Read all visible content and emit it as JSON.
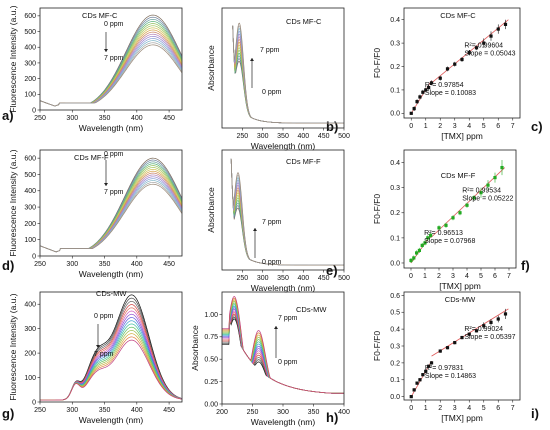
{
  "panel_letters": {
    "a": "a)",
    "b": "b)",
    "c": "c)",
    "d": "d)",
    "e": "e)",
    "f": "f)",
    "g": "g)",
    "h": "h)",
    "i": "i)"
  },
  "chart_data": [
    {
      "id": "fl_mfc",
      "type": "line",
      "title": "CDs MF-C",
      "xlabel": "Wavelength (nm)",
      "ylabel": "Fluorescence Intensity (a.u.)",
      "xlim": [
        250,
        470
      ],
      "ylim": [
        0,
        650
      ],
      "xticks": [
        250,
        300,
        350,
        400,
        450
      ],
      "yticks": [
        0,
        100,
        200,
        300,
        400,
        500,
        600
      ],
      "annotations": [
        "0 ppm",
        "7 ppm"
      ],
      "model": "fluor",
      "params": {
        "peak": 425,
        "width": 60,
        "amp_start": 605,
        "amp_end": 415,
        "n": 15,
        "ramp_min": 250,
        "ramp_rise": 20,
        "ramp_floor": 45,
        "dip_at": 273,
        "dip_min": 25
      }
    },
    {
      "id": "abs_mfc",
      "type": "line",
      "title": "CDs MF-C",
      "xlabel": "Wavelength (nm)",
      "ylabel": "Absorbance",
      "xlim": [
        200,
        500
      ],
      "ylim": [
        0,
        1.0
      ],
      "xticks": [
        250,
        300,
        350,
        400,
        450,
        500
      ],
      "yticks": [],
      "annotations": [
        "7 ppm",
        "0 ppm"
      ],
      "model": "absorb",
      "params": {
        "start": 225,
        "top": 0.98,
        "shoulder_at": 243,
        "shoulder_min": 0.5,
        "shoulder_max": 0.9,
        "decay": 28,
        "tail": 0.04,
        "n": 15
      }
    },
    {
      "id": "sv_mfc",
      "type": "scatter",
      "title": "CDs MF-C",
      "xlabel": "[TMX] ppm",
      "ylabel": "F0-F/F0",
      "xlim": [
        -0.5,
        7.5
      ],
      "ylim": [
        -0.02,
        0.45
      ],
      "xticks": [
        0,
        1,
        2,
        3,
        4,
        5,
        6,
        7
      ],
      "yticks": [
        0.0,
        0.1,
        0.2,
        0.3,
        0.4
      ],
      "x": [
        0,
        0.2,
        0.4,
        0.6,
        0.8,
        1.0,
        1.2,
        1.4,
        2.0,
        2.5,
        3.0,
        3.5,
        4.0,
        4.5,
        5.0,
        5.5,
        6.0,
        6.5
      ],
      "y": [
        0.0,
        0.02,
        0.05,
        0.07,
        0.09,
        0.1,
        0.11,
        0.13,
        0.15,
        0.19,
        0.21,
        0.23,
        0.26,
        0.28,
        0.3,
        0.33,
        0.36,
        0.38
      ],
      "err": [
        0,
        0.01,
        0.01,
        0.01,
        0.01,
        0.01,
        0.01,
        0.01,
        0.01,
        0.01,
        0.01,
        0.01,
        0.01,
        0.01,
        0.02,
        0.02,
        0.02,
        0.02
      ],
      "marker": "square",
      "color": "#111111",
      "fits": [
        {
          "x": [
            0,
            1.4
          ],
          "y": [
            0.0,
            0.14
          ],
          "r2": "R²= 0.97854",
          "slope": "Slope = 0.10083"
        },
        {
          "x": [
            1.4,
            6.7
          ],
          "y": [
            0.13,
            0.4
          ],
          "r2": "R²= 0.99604",
          "slope": "Slope = 0.05043"
        }
      ]
    },
    {
      "id": "fl_mff",
      "type": "line",
      "title": "CDs MF-F",
      "xlabel": "Wavelength (nm)",
      "ylabel": "Fluorescence Intensity (a.u.)",
      "xlim": [
        250,
        470
      ],
      "ylim": [
        0,
        650
      ],
      "xticks": [
        250,
        300,
        350,
        400,
        450
      ],
      "yticks": [
        0,
        100,
        200,
        300,
        400,
        500,
        600
      ],
      "annotations": [
        "0 ppm",
        "7 ppm"
      ],
      "model": "fluor",
      "params": {
        "peak": 425,
        "width": 62,
        "amp_start": 600,
        "amp_end": 440,
        "n": 15,
        "ramp_min": 250,
        "ramp_rise": 20,
        "ramp_floor": 45,
        "dip_at": 275,
        "dip_min": 25
      }
    },
    {
      "id": "abs_mff",
      "type": "line",
      "title": "CDs MF-F",
      "xlabel": "Wavelength (nm)",
      "ylabel": "Absorbance",
      "xlim": [
        200,
        500
      ],
      "ylim": [
        0,
        1.0
      ],
      "xticks": [
        250,
        300,
        350,
        400,
        450,
        500
      ],
      "yticks": [],
      "annotations": [
        "7 ppm",
        "0 ppm"
      ],
      "model": "absorb",
      "params": {
        "start": 222,
        "top": 0.98,
        "shoulder_at": 240,
        "shoulder_min": 0.45,
        "shoulder_max": 0.82,
        "decay": 28,
        "tail": 0.04,
        "n": 15
      }
    },
    {
      "id": "sv_mff",
      "type": "scatter",
      "title": "CDs MF-F",
      "xlabel": "[TMX] ppm",
      "ylabel": "F0-F/F0",
      "xlim": [
        -0.5,
        7.5
      ],
      "ylim": [
        -0.02,
        0.45
      ],
      "xticks": [
        0,
        1,
        2,
        3,
        4,
        5,
        6,
        7
      ],
      "yticks": [
        0.0,
        0.1,
        0.2,
        0.3,
        0.4
      ],
      "x": [
        0,
        0.2,
        0.4,
        0.6,
        0.8,
        1.0,
        1.2,
        1.4,
        2.0,
        2.5,
        3.0,
        3.5,
        4.0,
        4.5,
        5.0,
        5.5,
        6.0,
        6.5
      ],
      "y": [
        0.01,
        0.02,
        0.04,
        0.05,
        0.07,
        0.08,
        0.1,
        0.11,
        0.14,
        0.15,
        0.18,
        0.2,
        0.23,
        0.26,
        0.28,
        0.31,
        0.34,
        0.38
      ],
      "err": [
        0.01,
        0.01,
        0.01,
        0.01,
        0.01,
        0.01,
        0.01,
        0.01,
        0.01,
        0.01,
        0.01,
        0.01,
        0.01,
        0.01,
        0.02,
        0.02,
        0.02,
        0.03
      ],
      "marker": "square",
      "color": "#22aa22",
      "fits": [
        {
          "x": [
            0,
            1.4
          ],
          "y": [
            0.0,
            0.11
          ],
          "r2": "R²= 0.96513",
          "slope": "Slope = 0.07968"
        },
        {
          "x": [
            1.4,
            6.7
          ],
          "y": [
            0.1,
            0.38
          ],
          "r2": "R²= 0.99534",
          "slope": "Slope = 0.05222"
        }
      ]
    },
    {
      "id": "fl_mw",
      "type": "line",
      "title": "CDs-MW",
      "xlabel": "Wavelength (nm)",
      "ylabel": "Fluorescence Intensity (a.u.)",
      "xlim": [
        250,
        470
      ],
      "ylim": [
        0,
        450
      ],
      "xticks": [
        250,
        300,
        350,
        400,
        450
      ],
      "yticks": [
        0,
        100,
        200,
        300,
        400
      ],
      "annotations": [
        "0 ppm",
        "7 ppm"
      ],
      "model": "fluor_mw",
      "params": {
        "peak": 392,
        "width": 38,
        "amp_start": 430,
        "amp_end": 245,
        "n": 15,
        "small_at": 305,
        "small_amp": 55
      }
    },
    {
      "id": "abs_mw",
      "type": "line",
      "title": "CDs-MW",
      "xlabel": "Wavelength (nm)",
      "ylabel": "Absorbance",
      "xlim": [
        200,
        400
      ],
      "ylim": [
        0,
        1.25
      ],
      "xticks": [
        200,
        250,
        300,
        350,
        400
      ],
      "yticks": [
        0.0,
        0.25,
        0.5,
        0.75,
        1.0
      ],
      "annotations": [
        "7 ppm",
        "0 ppm"
      ],
      "model": "absorb_mw",
      "params": {
        "peak": 220,
        "amp_min": 0.95,
        "amp_max": 1.2,
        "shoulder_at": 260,
        "shoulder_min": 0.35,
        "shoulder_max": 0.7,
        "n": 15
      }
    },
    {
      "id": "sv_mw",
      "type": "scatter",
      "title": "CDs-MW",
      "xlabel": "[TMX] ppm",
      "ylabel": "F0-F/F0",
      "xlim": [
        -0.5,
        7.5
      ],
      "ylim": [
        -0.02,
        0.62
      ],
      "xticks": [
        0,
        1,
        2,
        3,
        4,
        5,
        6,
        7
      ],
      "yticks": [
        0.0,
        0.1,
        0.2,
        0.3,
        0.4,
        0.5,
        0.6
      ],
      "x": [
        0,
        0.2,
        0.4,
        0.6,
        0.8,
        1.0,
        1.2,
        1.4,
        2.0,
        2.5,
        3.0,
        3.5,
        4.0,
        4.5,
        5.0,
        5.5,
        6.0,
        6.5
      ],
      "y": [
        0.0,
        0.04,
        0.08,
        0.1,
        0.13,
        0.15,
        0.18,
        0.2,
        0.27,
        0.29,
        0.32,
        0.35,
        0.37,
        0.39,
        0.42,
        0.44,
        0.46,
        0.49
      ],
      "err": [
        0,
        0.01,
        0.01,
        0.01,
        0.01,
        0.01,
        0.01,
        0.01,
        0.01,
        0.01,
        0.01,
        0.01,
        0.01,
        0.01,
        0.02,
        0.02,
        0.02,
        0.03
      ],
      "marker": "square",
      "color": "#111111",
      "fits": [
        {
          "x": [
            0,
            1.4
          ],
          "y": [
            0.0,
            0.21
          ],
          "r2": "R²= 0.97831",
          "slope": "Slope = 0.14863"
        },
        {
          "x": [
            1.4,
            6.7
          ],
          "y": [
            0.24,
            0.52
          ],
          "r2": "R²= 0.99024",
          "slope": "Slope = 0.05397"
        }
      ]
    }
  ]
}
